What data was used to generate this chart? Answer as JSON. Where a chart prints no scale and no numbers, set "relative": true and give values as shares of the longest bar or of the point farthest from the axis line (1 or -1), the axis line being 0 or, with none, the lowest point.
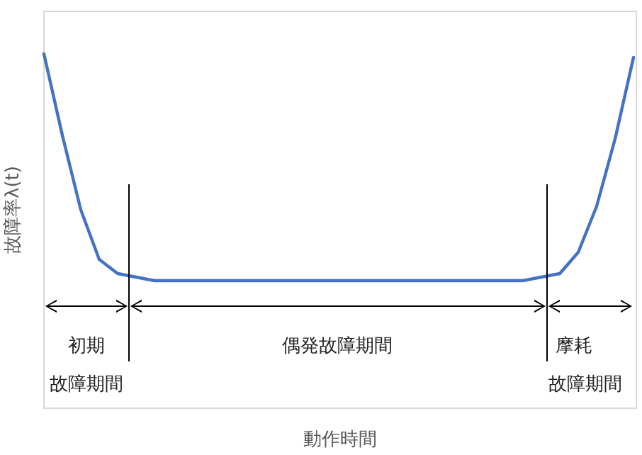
{
  "chart_data": {
    "type": "line",
    "relative": true,
    "ylabel": "故障率λ(t)",
    "categories": [
      null,
      null,
      null,
      null,
      null,
      null,
      null,
      null,
      null,
      null,
      null,
      null,
      null,
      null,
      null,
      null,
      null,
      null,
      null,
      null,
      null,
      null,
      null,
      null,
      null,
      null,
      null,
      null,
      null,
      null,
      null,
      null,
      null
    ],
    "series": [
      {
        "color": "#4472c4",
        "values": [
          1.0,
          0.77,
          0.56,
          0.42,
          0.38,
          0.37,
          0.36,
          0.36,
          0.36,
          0.36,
          0.36,
          0.36,
          0.36,
          0.36,
          0.36,
          0.36,
          0.36,
          0.36,
          0.36,
          0.36,
          0.36,
          0.36,
          0.36,
          0.36,
          0.36,
          0.36,
          0.36,
          0.37,
          0.38,
          0.44,
          0.57,
          0.76,
          0.99
        ]
      }
    ],
    "annotations": [
      "初期",
      "故障期間",
      "偶発故障期間",
      "摩耗",
      "故障期間",
      "動作時間"
    ]
  }
}
